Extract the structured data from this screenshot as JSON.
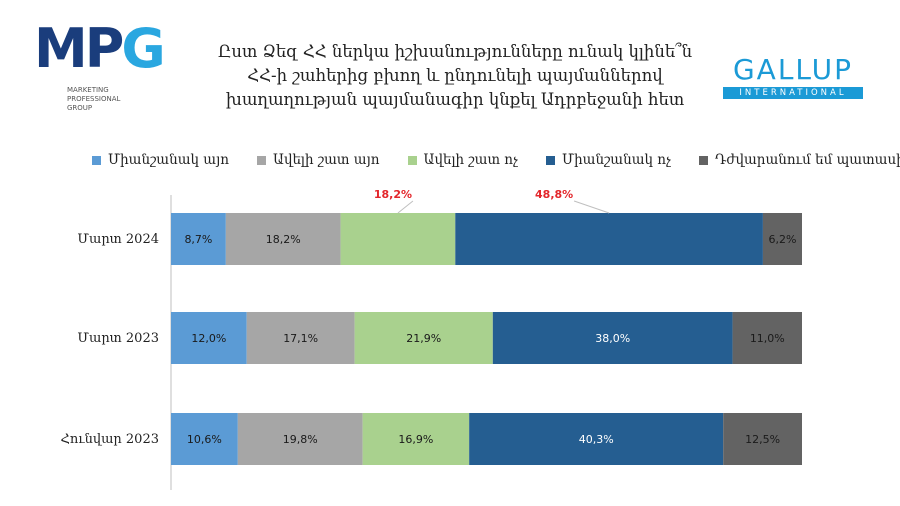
{
  "header": {
    "title_lines": [
      "Ըստ Ձեզ ՀՀ ներկա իշխանությունները ունակ կլինե՞ն",
      "ՀՀ-ի շահերից բխող և ընդունելի պայմաններով",
      "խաղաղության պայմանագիր կնքել Ադրբեջանի հետ"
    ]
  },
  "logos": {
    "mpg": {
      "text": "MPG",
      "subtitle_lines": [
        "MARKETING",
        "PROFESSIONAL",
        "GROUP"
      ]
    },
    "gallup": {
      "word": "GALLUP",
      "band": "INTERNATIONAL"
    }
  },
  "colors": {
    "series": [
      "#5b9bd5",
      "#a6a6a6",
      "#a9d18e",
      "#255e91",
      "#636363"
    ],
    "callout": "#e3262b",
    "axis": "#bfbfbf"
  },
  "chart_data": {
    "type": "bar",
    "orientation": "horizontal",
    "stacked": true,
    "percent_stacked": true,
    "title": "",
    "xlabel": "",
    "ylabel": "",
    "legend_position": "top",
    "categories": [
      "Մարտ 2024",
      "Մարտ 2023",
      "Հունվար 2023"
    ],
    "series": [
      {
        "name": "Միանշանակ այո",
        "values": [
          8.7,
          12.0,
          10.6
        ],
        "labels": [
          "8,7%",
          "12,0%",
          "10,6%"
        ]
      },
      {
        "name": "Ավելի շատ այո",
        "values": [
          18.2,
          17.1,
          19.8
        ],
        "labels": [
          "18,2%",
          "17,1%",
          "19,8%"
        ]
      },
      {
        "name": "Ավելի շատ ոչ",
        "values": [
          18.2,
          21.9,
          16.9
        ],
        "labels": [
          "",
          "21,9%",
          "16,9%"
        ]
      },
      {
        "name": "Միանշանակ ոչ",
        "values": [
          48.8,
          38.0,
          40.3
        ],
        "labels": [
          "",
          "38,0%",
          "40,3%"
        ]
      },
      {
        "name": "Դժվարանում եմ պատասխանել",
        "values": [
          6.2,
          11.0,
          12.5
        ],
        "labels": [
          "6,2%",
          "11,0%",
          "12,5%"
        ]
      }
    ],
    "callouts": [
      {
        "category_index": 0,
        "series_index": 2,
        "label": "18,2%"
      },
      {
        "category_index": 0,
        "series_index": 3,
        "label": "48,8%"
      }
    ]
  }
}
